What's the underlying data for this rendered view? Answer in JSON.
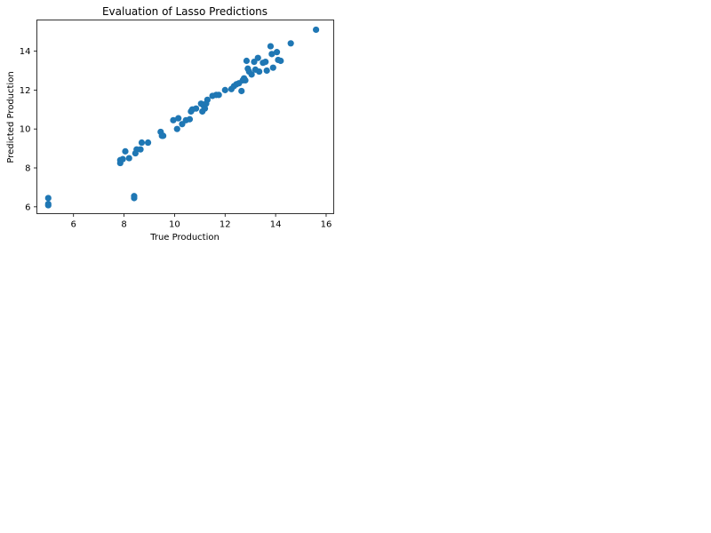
{
  "chart_data": {
    "type": "scatter",
    "title": "Evaluation of Lasso Predictions",
    "xlabel": "True Production",
    "ylabel": "Predicted Production",
    "xlim": [
      4.55,
      16.3
    ],
    "ylim": [
      5.65,
      15.6
    ],
    "xticks": [
      6,
      8,
      10,
      12,
      14,
      16
    ],
    "yticks": [
      6,
      8,
      10,
      12,
      14
    ],
    "grid": false,
    "marker_color": "#1f77b4",
    "series": [
      {
        "points": [
          [
            5.0,
            6.45
          ],
          [
            5.0,
            6.15
          ],
          [
            5.0,
            6.08
          ],
          [
            7.85,
            8.4
          ],
          [
            7.85,
            8.25
          ],
          [
            7.95,
            8.45
          ],
          [
            8.05,
            8.85
          ],
          [
            8.2,
            8.5
          ],
          [
            8.4,
            6.55
          ],
          [
            8.4,
            6.45
          ],
          [
            8.45,
            8.75
          ],
          [
            8.5,
            8.95
          ],
          [
            8.65,
            8.95
          ],
          [
            8.7,
            9.3
          ],
          [
            8.95,
            9.3
          ],
          [
            9.45,
            9.85
          ],
          [
            9.5,
            9.65
          ],
          [
            9.55,
            9.65
          ],
          [
            9.95,
            10.45
          ],
          [
            10.1,
            10.0
          ],
          [
            10.15,
            10.55
          ],
          [
            10.3,
            10.25
          ],
          [
            10.45,
            10.45
          ],
          [
            10.6,
            10.5
          ],
          [
            10.65,
            10.9
          ],
          [
            10.7,
            11.0
          ],
          [
            10.85,
            11.05
          ],
          [
            11.05,
            11.3
          ],
          [
            11.1,
            10.9
          ],
          [
            11.15,
            11.2
          ],
          [
            11.2,
            11.05
          ],
          [
            11.25,
            11.3
          ],
          [
            11.3,
            11.5
          ],
          [
            11.5,
            11.7
          ],
          [
            11.65,
            11.75
          ],
          [
            11.75,
            11.75
          ],
          [
            12.0,
            12.0
          ],
          [
            12.25,
            12.05
          ],
          [
            12.35,
            12.2
          ],
          [
            12.45,
            12.3
          ],
          [
            12.55,
            12.35
          ],
          [
            12.65,
            11.95
          ],
          [
            12.7,
            12.5
          ],
          [
            12.75,
            12.6
          ],
          [
            12.8,
            12.5
          ],
          [
            12.85,
            13.5
          ],
          [
            12.9,
            13.1
          ],
          [
            12.95,
            12.95
          ],
          [
            13.05,
            12.8
          ],
          [
            13.15,
            13.45
          ],
          [
            13.2,
            13.05
          ],
          [
            13.3,
            13.65
          ],
          [
            13.35,
            12.95
          ],
          [
            13.5,
            13.4
          ],
          [
            13.6,
            13.45
          ],
          [
            13.65,
            13.0
          ],
          [
            13.8,
            14.25
          ],
          [
            13.85,
            13.85
          ],
          [
            13.9,
            13.15
          ],
          [
            14.05,
            13.95
          ],
          [
            14.1,
            13.55
          ],
          [
            14.2,
            13.5
          ],
          [
            14.6,
            14.4
          ],
          [
            15.6,
            15.1
          ]
        ]
      }
    ]
  }
}
